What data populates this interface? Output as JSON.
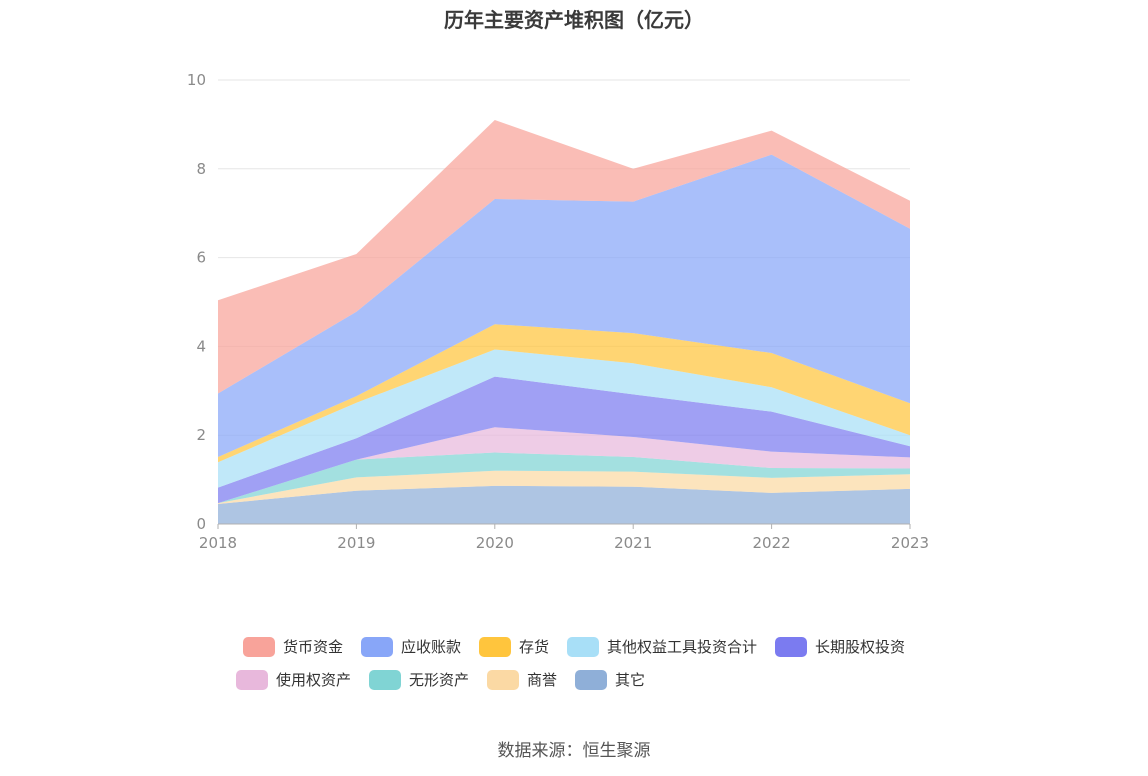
{
  "chart_data": {
    "type": "area",
    "title": "历年主要资产堆积图（亿元）",
    "stacked": true,
    "x": [
      "2018",
      "2019",
      "2020",
      "2021",
      "2022",
      "2023"
    ],
    "ylim": [
      0,
      10
    ],
    "yticks": [
      0,
      2,
      4,
      6,
      8,
      10
    ],
    "grid": true,
    "legend_position": "bottom",
    "series": [
      {
        "name": "其它",
        "color": "#8fafd8",
        "values": [
          0.45,
          0.75,
          0.86,
          0.84,
          0.7,
          0.79
        ]
      },
      {
        "name": "商誉",
        "color": "#fbd9a4",
        "values": [
          0.02,
          0.3,
          0.34,
          0.34,
          0.34,
          0.33
        ]
      },
      {
        "name": "无形资产",
        "color": "#80d4d4",
        "values": [
          0.0,
          0.4,
          0.41,
          0.33,
          0.22,
          0.13
        ]
      },
      {
        "name": "使用权资产",
        "color": "#e8b8dc",
        "values": [
          0.0,
          0.0,
          0.57,
          0.45,
          0.37,
          0.25
        ]
      },
      {
        "name": "长期股权投资",
        "color": "#7b7bf0",
        "values": [
          0.35,
          0.48,
          1.14,
          0.96,
          0.9,
          0.25
        ]
      },
      {
        "name": "其他权益工具投资合计",
        "color": "#a8dff7",
        "values": [
          0.57,
          0.8,
          0.61,
          0.7,
          0.55,
          0.25
        ]
      },
      {
        "name": "存货",
        "color": "#ffc53d",
        "values": [
          0.12,
          0.15,
          0.57,
          0.68,
          0.77,
          0.72
        ]
      },
      {
        "name": "应收账款",
        "color": "#88a6f8",
        "values": [
          1.43,
          1.9,
          2.82,
          2.96,
          4.47,
          3.93
        ]
      },
      {
        "name": "货币资金",
        "color": "#f8a39a",
        "values": [
          2.1,
          1.3,
          1.78,
          0.74,
          0.54,
          0.63
        ]
      }
    ]
  },
  "legend": {
    "row1": [
      {
        "label": "货币资金",
        "color": "#f8a39a"
      },
      {
        "label": "应收账款",
        "color": "#88a6f8"
      },
      {
        "label": "存货",
        "color": "#ffc53d"
      },
      {
        "label": "其他权益工具投资合计",
        "color": "#a8dff7"
      },
      {
        "label": "长期股权投资",
        "color": "#7b7bf0"
      }
    ],
    "row2": [
      {
        "label": "使用权资产",
        "color": "#e8b8dc"
      },
      {
        "label": "无形资产",
        "color": "#80d4d4"
      },
      {
        "label": "商誉",
        "color": "#fbd9a4"
      },
      {
        "label": "其它",
        "color": "#8fafd8"
      }
    ]
  },
  "source": "数据来源：恒生聚源"
}
